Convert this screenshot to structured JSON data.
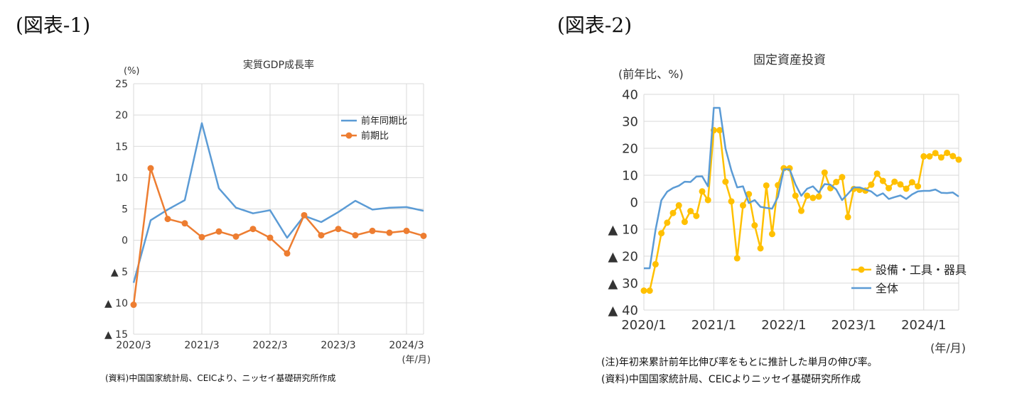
{
  "figure1": {
    "label": "(図表-1)",
    "source_note": "(資料)中国国家統計局、CEICより、ニッセイ基礎研究所作成"
  },
  "figure2": {
    "label": "(図表-2)",
    "footnote": "(注)年初来累計前年比伸び率をもとに推計した単月の伸び率。",
    "source_note": "(資料)中国国家統計局、CEICよりニッセイ基礎研究所作成"
  },
  "chart_data": [
    {
      "type": "line",
      "title": "実質GDP成長率",
      "ylabel": "(%)",
      "xlabel": "(年/月)",
      "ylim": [
        -15,
        25
      ],
      "yticks": [
        25,
        20,
        15,
        10,
        5,
        0,
        -5,
        -10,
        -15
      ],
      "ytick_labels": [
        "25",
        "20",
        "15",
        "10",
        "5",
        "0",
        "▲ 5",
        "▲ 10",
        "▲ 15"
      ],
      "x": [
        "2020/3",
        "2020/6",
        "2020/9",
        "2020/12",
        "2021/3",
        "2021/6",
        "2021/9",
        "2021/12",
        "2022/3",
        "2022/6",
        "2022/9",
        "2022/12",
        "2023/3",
        "2023/6",
        "2023/9",
        "2023/12",
        "2024/3",
        "2024/6"
      ],
      "xtick_labels": [
        "2020/3",
        "2021/3",
        "2022/3",
        "2023/3",
        "2024/3"
      ],
      "grid": true,
      "legend": "top-right",
      "series": [
        {
          "name": "前年同期比",
          "color": "#5b9bd5",
          "marker": false,
          "values": [
            -6.8,
            3.2,
            4.9,
            6.4,
            18.7,
            8.3,
            5.2,
            4.3,
            4.8,
            0.4,
            3.9,
            2.9,
            4.5,
            6.3,
            4.9,
            5.2,
            5.3,
            4.7
          ]
        },
        {
          "name": "前期比",
          "color": "#ed7d31",
          "marker": true,
          "values": [
            -10.3,
            11.5,
            3.4,
            2.7,
            0.5,
            1.4,
            0.6,
            1.8,
            0.4,
            -2.1,
            4.0,
            0.8,
            1.8,
            0.8,
            1.5,
            1.2,
            1.5,
            0.7
          ]
        }
      ]
    },
    {
      "type": "line",
      "title": "固定資産投資",
      "ylabel": "(前年比、%)",
      "xlabel": "(年/月)",
      "ylim": [
        -40,
        40
      ],
      "yticks": [
        40,
        30,
        20,
        10,
        0,
        -10,
        -20,
        -30,
        -40
      ],
      "ytick_labels": [
        "40",
        "30",
        "20",
        "10",
        "0",
        "▲ 10",
        "▲ 20",
        "▲ 30",
        "▲ 40"
      ],
      "x_start": "2020/1",
      "xtick_labels": [
        "2020/1",
        "2021/1",
        "2022/1",
        "2023/1",
        "2024/1"
      ],
      "grid": true,
      "legend": "bottom-right",
      "series": [
        {
          "name": "設備・工具・器具",
          "color": "#ffc000",
          "marker": true,
          "values": [
            -32.8,
            -32.8,
            -23.0,
            -11.5,
            -7.6,
            -4.0,
            -1.2,
            -7.3,
            -3.3,
            -5.1,
            4.0,
            0.8,
            26.7,
            26.7,
            7.6,
            0.3,
            -20.8,
            -1.2,
            3.0,
            -8.6,
            -17.1,
            6.2,
            -11.8,
            6.3,
            12.6,
            12.6,
            2.4,
            -3.2,
            2.4,
            1.6,
            2.1,
            11.0,
            5.2,
            7.5,
            9.3,
            -5.5,
            4.9,
            4.6,
            4.3,
            6.5,
            10.6,
            7.9,
            5.2,
            7.6,
            6.6,
            5.0,
            7.4,
            5.9,
            17.0,
            17.0,
            18.2,
            16.6,
            18.3,
            17.1,
            15.8
          ]
        },
        {
          "name": "全体",
          "color": "#5b9bd5",
          "marker": false,
          "values": [
            -24.5,
            -24.5,
            -10.3,
            0.7,
            3.9,
            5.3,
            6.1,
            7.6,
            7.5,
            9.5,
            9.6,
            5.9,
            35.0,
            35.0,
            19.9,
            11.8,
            5.5,
            5.9,
            -0.3,
            0.8,
            -1.7,
            -2.1,
            -2.4,
            2.0,
            12.2,
            12.2,
            6.6,
            2.4,
            5.0,
            5.9,
            3.6,
            6.7,
            6.5,
            4.7,
            0.8,
            3.1,
            5.5,
            5.5,
            4.7,
            4.0,
            2.3,
            3.3,
            1.2,
            1.9,
            2.5,
            1.2,
            2.9,
            4.0,
            4.2,
            4.2,
            4.7,
            3.5,
            3.4,
            3.6,
            2.1
          ]
        }
      ]
    }
  ]
}
